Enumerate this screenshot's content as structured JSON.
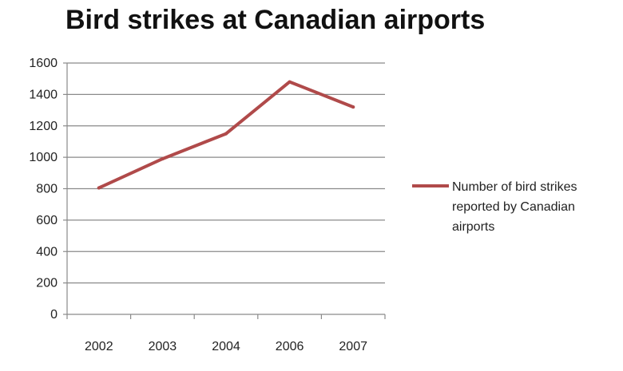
{
  "chart_data": {
    "type": "line",
    "title": "Bird strikes at Canadian airports",
    "xlabel": "",
    "ylabel": "",
    "categories": [
      "2002",
      "2003",
      "2004",
      "2006",
      "2007"
    ],
    "series": [
      {
        "name": "Number of bird strikes reported by Canadian airports",
        "values": [
          805,
          990,
          1150,
          1480,
          1320
        ],
        "color": "#b04a4a"
      }
    ],
    "ylim": [
      0,
      1600
    ],
    "yticks": [
      "0",
      "200",
      "400",
      "600",
      "800",
      "1000",
      "1200",
      "1400",
      "1600"
    ],
    "grid": true,
    "legend": {
      "placement": "right",
      "lines": [
        "Number of bird strikes",
        "reported by Canadian",
        "airports"
      ]
    }
  }
}
